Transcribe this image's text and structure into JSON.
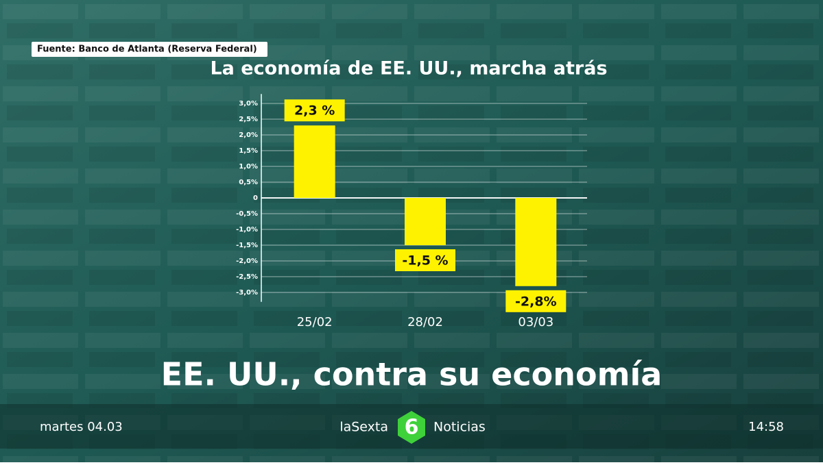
{
  "source": "Fuente: Banco de Atlanta (Reserva Federal)",
  "headline": "EE. UU., contra su economía",
  "footer": {
    "date": "martes 04.03",
    "brand": "laSexta",
    "logo": "6",
    "program": "Noticias",
    "time": "14:58"
  },
  "chart_data": {
    "type": "bar",
    "title": "La economía de EE. UU., marcha atrás",
    "categories": [
      "25/02",
      "28/02",
      "03/03"
    ],
    "values": [
      2.3,
      -1.5,
      -2.8
    ],
    "value_labels": [
      "2,3 %",
      "-1,5 %",
      "-2,8%"
    ],
    "color": "#fff200",
    "ylim": [
      -3.3,
      3.3
    ],
    "yticks": [
      {
        "value": 3,
        "label": "3,0%"
      },
      {
        "value": 2.5,
        "label": "2,5%"
      },
      {
        "value": 2,
        "label": "2,0%"
      },
      {
        "value": 1.5,
        "label": "1,5%"
      },
      {
        "value": 1,
        "label": "1,0%"
      },
      {
        "value": 0.5,
        "label": "0,5%"
      },
      0,
      {
        "value": -0.5,
        "label": "-0,5%"
      },
      {
        "value": -1,
        "label": "-1,0%"
      },
      {
        "value": -1.5,
        "label": "-1,5%"
      },
      {
        "value": -2,
        "label": "-2,0%"
      },
      {
        "value": -2.5,
        "label": "-2,5%"
      },
      {
        "value": -3,
        "label": "-3,0%"
      }
    ],
    "grid": true
  }
}
